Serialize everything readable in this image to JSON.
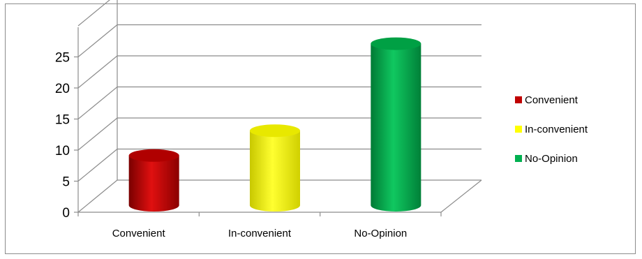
{
  "chart_data": {
    "type": "bar",
    "style": "3d-cylinder",
    "categories": [
      "Convenient",
      "In-convenient",
      "No-Opinion"
    ],
    "values": [
      8,
      12,
      26
    ],
    "ylim": [
      0,
      28
    ],
    "yticks": [
      0,
      5,
      10,
      15,
      20,
      25
    ],
    "grid": true,
    "legend_position": "right",
    "legend": [
      {
        "label": "Convenient",
        "color": "#c00000"
      },
      {
        "label": "In-convenient",
        "color": "#ffff00"
      },
      {
        "label": "No-Opinion",
        "color": "#00b050"
      }
    ],
    "colors": [
      "#c00000",
      "#ffff00",
      "#00b050"
    ],
    "title": "",
    "xlabel": "",
    "ylabel": ""
  }
}
